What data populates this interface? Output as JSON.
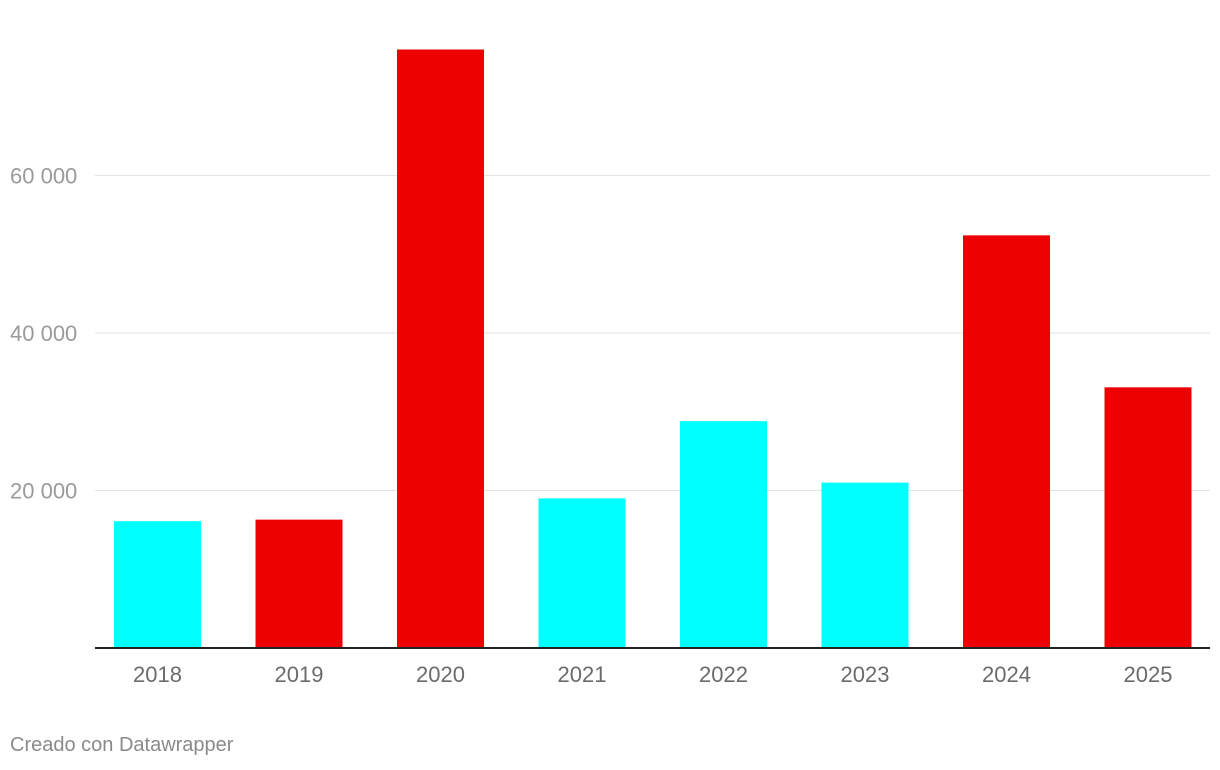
{
  "chart_data": {
    "type": "bar",
    "categories": [
      "2018",
      "2019",
      "2020",
      "2021",
      "2022",
      "2023",
      "2024",
      "2025"
    ],
    "values": [
      16100,
      16300,
      76000,
      19000,
      28800,
      21000,
      52400,
      33100
    ],
    "bar_colors": [
      "#00ffff",
      "#ee0000",
      "#ee0000",
      "#00ffff",
      "#00ffff",
      "#00ffff",
      "#ee0000",
      "#ee0000"
    ],
    "colors": {
      "cyan": "#00ffff",
      "red": "#ee0000"
    },
    "y_ticks": [
      20000,
      40000,
      60000
    ],
    "y_tick_labels": [
      "20 000",
      "40 000",
      "60 000"
    ],
    "ylim": [
      0,
      80000
    ],
    "grid": true,
    "title": "",
    "xlabel": "",
    "ylabel": ""
  },
  "footer": {
    "credit": "Creado con Datawrapper"
  }
}
